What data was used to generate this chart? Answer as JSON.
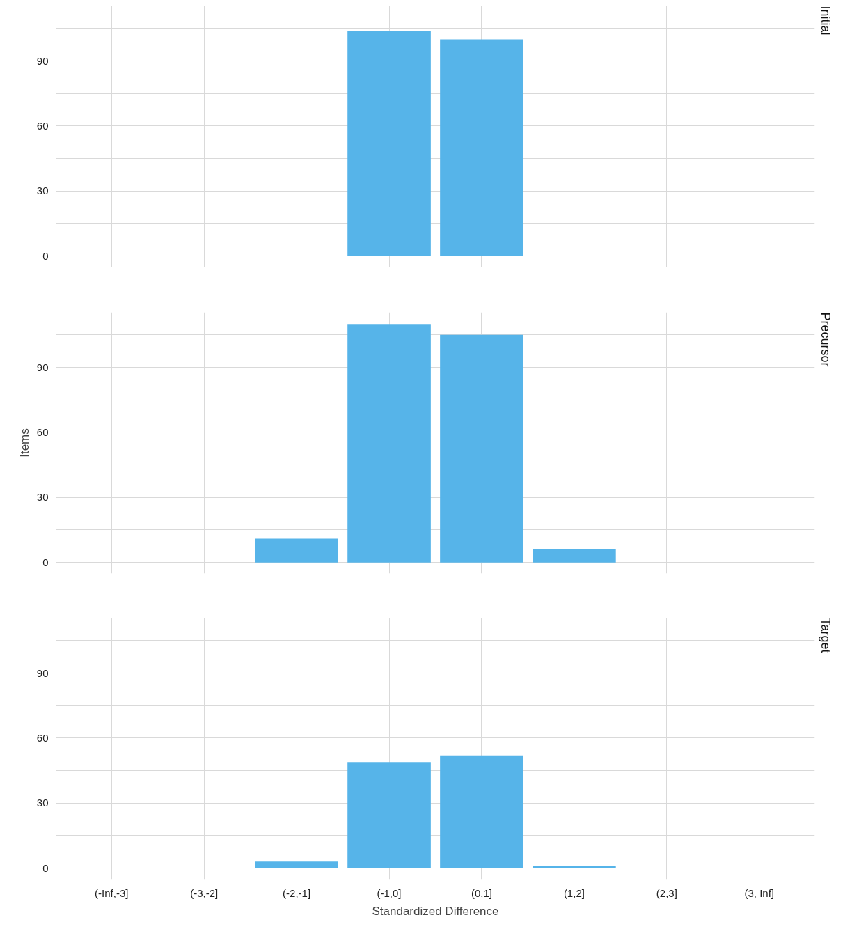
{
  "chart_data": [
    {
      "type": "bar",
      "title": "Initial",
      "categories": [
        null,
        null,
        null,
        null,
        null,
        null,
        null,
        null
      ],
      "series": [
        {
          "color": "#56b4e9",
          "values": [
            0,
            0,
            0,
            104,
            100,
            0,
            0,
            0
          ]
        }
      ],
      "ylim": [
        -5.1,
        115.4
      ],
      "yticks": [
        0,
        {
          "value": 15,
          "label": null
        },
        30,
        {
          "value": 45,
          "label": null
        },
        60,
        {
          "value": 75,
          "label": null
        },
        90,
        {
          "value": 105,
          "label": null
        }
      ],
      "grid": true,
      "tick_labels": "y"
    },
    {
      "type": "bar",
      "title": "Precursor",
      "ylabel": "Items",
      "categories": [
        null,
        null,
        null,
        null,
        null,
        null,
        null,
        null
      ],
      "series": [
        {
          "color": "#56b4e9",
          "values": [
            0,
            0,
            11,
            110,
            105,
            6,
            0,
            0
          ]
        }
      ],
      "ylim": [
        -5.1,
        115.4
      ],
      "yticks": [
        0,
        {
          "value": 15,
          "label": null
        },
        30,
        {
          "value": 45,
          "label": null
        },
        60,
        {
          "value": 75,
          "label": null
        },
        90,
        {
          "value": 105,
          "label": null
        }
      ],
      "grid": true,
      "tick_labels": "y"
    },
    {
      "type": "bar",
      "title": "Target",
      "xlabel": "Standardized Difference",
      "categories": [
        "(-Inf,-3]",
        "(-3,-2]",
        "(-2,-1]",
        "(-1,0]",
        "(0,1]",
        "(1,2]",
        "(2,3]",
        "(3, Inf]"
      ],
      "series": [
        {
          "color": "#56b4e9",
          "values": [
            0,
            0,
            3,
            49,
            52,
            1,
            0,
            0
          ]
        }
      ],
      "ylim": [
        -5.1,
        115.4
      ],
      "yticks": [
        0,
        {
          "value": 15,
          "label": null
        },
        30,
        {
          "value": 45,
          "label": null
        },
        60,
        {
          "value": 75,
          "label": null
        },
        90,
        {
          "value": 105,
          "label": null
        }
      ],
      "grid": true
    }
  ]
}
